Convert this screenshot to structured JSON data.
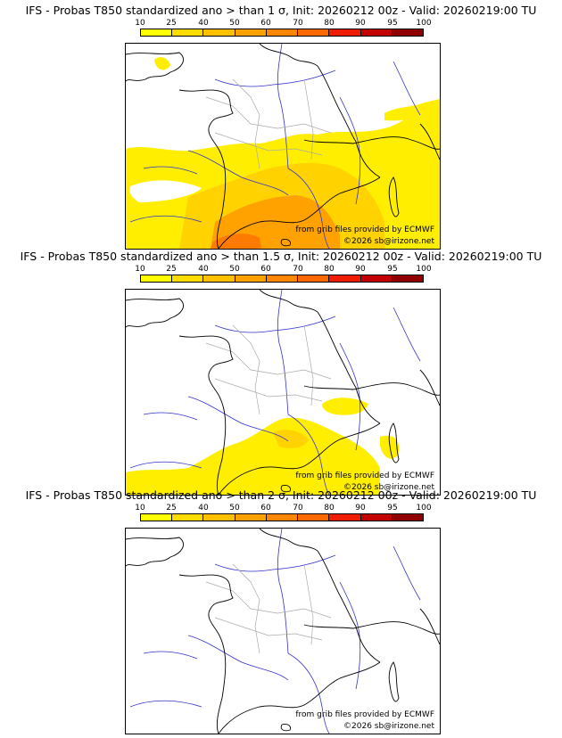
{
  "colorbar": {
    "ticks": [
      "10",
      "25",
      "40",
      "50",
      "60",
      "70",
      "80",
      "90",
      "95",
      "100"
    ],
    "colors": [
      "#ffff00",
      "#ffdc00",
      "#ffc000",
      "#ffa200",
      "#ff8600",
      "#ff6a00",
      "#ee1c00",
      "#c20000",
      "#900000",
      "#600000"
    ]
  },
  "colors": {
    "coast": "#000000",
    "rivers": "#3333cc",
    "borders": "#aaaaaa",
    "prob_low": "#ffee00",
    "prob_mid": "#ffd200",
    "prob_high": "#ffa200",
    "prob_max": "#ff7a00"
  },
  "panels": [
    {
      "title": "IFS - Probas T850  standardized ano > than 1 σ, Init: 20260212 00z - Valid: 20260219:00 TU",
      "source": "from grib files provided by ECMWF",
      "copyright": "©2026 sb@irizone.net"
    },
    {
      "title": "IFS - Probas T850  standardized ano > than 1.5 σ, Init: 20260212 00z - Valid: 20260219:00 TU",
      "source": "from grib files provided by ECMWF",
      "copyright": "©2026 sb@irizone.net"
    },
    {
      "title": "IFS - Probas T850  standardized ano > than 2 σ, Init: 20260212 00z - Valid: 20260219:00 TU",
      "source": "from grib files provided by ECMWF",
      "copyright": "©2026 sb@irizone.net"
    }
  ]
}
